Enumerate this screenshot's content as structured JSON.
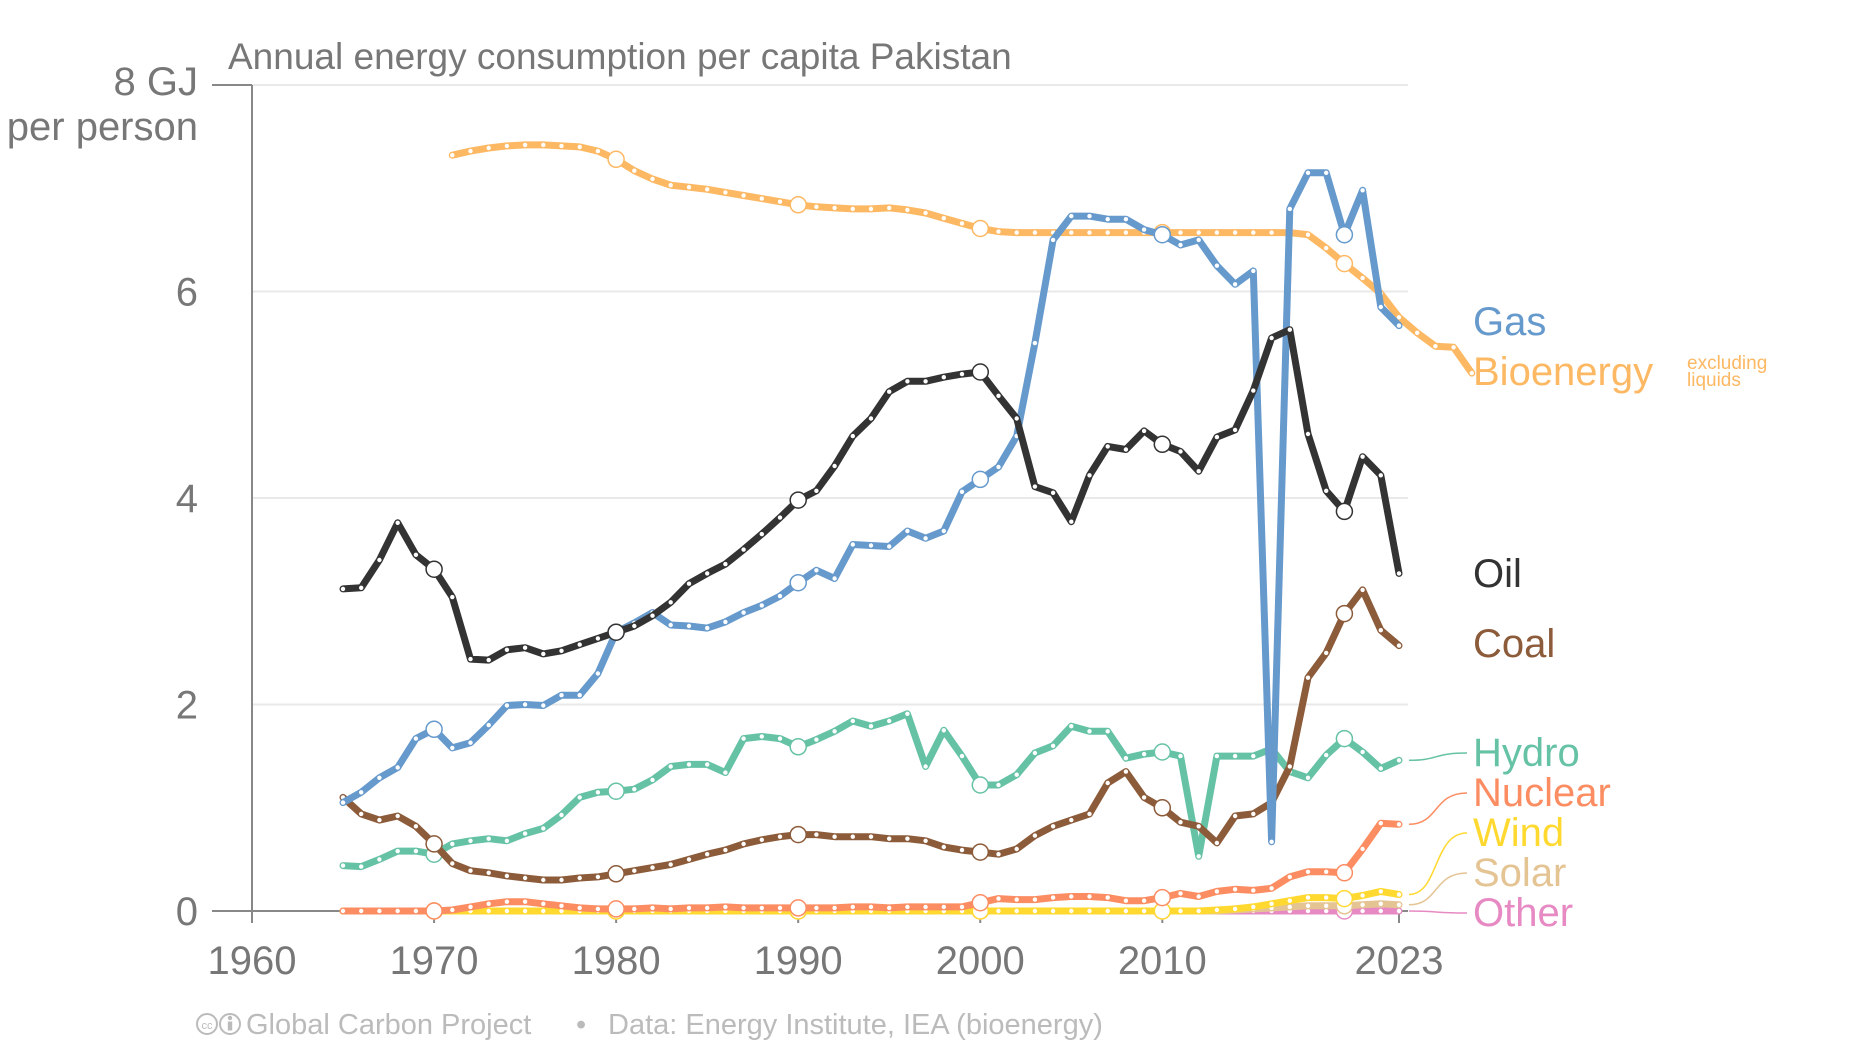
{
  "chart_data": {
    "type": "line",
    "title": "Annual energy consumption per capita Pakistan",
    "ylabel_lines": [
      "8 GJ",
      "per person"
    ],
    "ylim": [
      0,
      8
    ],
    "yticks": [
      "0",
      "2",
      "4",
      "6"
    ],
    "xlim": [
      1960,
      2023
    ],
    "xticks": [
      "1960",
      "1970",
      "1980",
      "1990",
      "2000",
      "2010",
      "2023"
    ],
    "footer": {
      "source": "Global Carbon Project",
      "separator": "•",
      "data": "Data: Energy Institute, IEA (bioenergy)"
    },
    "series": [
      {
        "name": "Bioenergy",
        "note": [
          "excluding",
          "liquids"
        ],
        "color": "#fdb863",
        "start": 1971,
        "values": [
          7.32,
          7.36,
          7.39,
          7.41,
          7.42,
          7.42,
          7.41,
          7.4,
          7.36,
          7.28,
          7.17,
          7.09,
          7.03,
          7.01,
          6.99,
          6.96,
          6.93,
          6.9,
          6.87,
          6.84,
          6.82,
          6.81,
          6.8,
          6.8,
          6.81,
          6.79,
          6.76,
          6.71,
          6.66,
          6.61,
          6.58,
          6.57,
          6.57,
          6.57,
          6.57,
          6.57,
          6.57,
          6.57,
          6.57,
          6.57,
          6.57,
          6.57,
          6.57,
          6.57,
          6.57,
          6.57,
          6.57,
          6.55,
          6.42,
          6.27,
          6.13,
          5.98,
          5.75,
          5.6,
          5.47,
          5.46,
          5.21
        ]
      },
      {
        "name": "Gas",
        "color": "#6699cc",
        "start": 1965,
        "values": [
          1.05,
          1.15,
          1.29,
          1.39,
          1.67,
          1.76,
          1.58,
          1.63,
          1.8,
          1.99,
          2.0,
          1.99,
          2.09,
          2.09,
          2.3,
          2.7,
          2.79,
          2.89,
          2.77,
          2.76,
          2.74,
          2.8,
          2.89,
          2.96,
          3.05,
          3.18,
          3.3,
          3.22,
          3.55,
          3.54,
          3.53,
          3.68,
          3.61,
          3.68,
          4.06,
          4.18,
          4.3,
          4.6,
          5.5,
          6.5,
          6.73,
          6.73,
          6.7,
          6.7,
          6.6,
          6.55,
          6.45,
          6.5,
          6.25,
          6.07,
          6.2,
          0.67,
          6.8,
          7.15,
          7.15,
          6.55,
          6.98,
          5.85,
          5.67
        ]
      },
      {
        "name": "Oil",
        "color": "#333333",
        "start": 1965,
        "values": [
          3.12,
          3.13,
          3.4,
          3.76,
          3.45,
          3.31,
          3.04,
          2.44,
          2.43,
          2.53,
          2.55,
          2.49,
          2.52,
          2.58,
          2.64,
          2.7,
          2.76,
          2.86,
          2.99,
          3.17,
          3.27,
          3.36,
          3.5,
          3.65,
          3.81,
          3.98,
          4.07,
          4.31,
          4.6,
          4.77,
          5.03,
          5.13,
          5.13,
          5.17,
          5.2,
          5.22,
          4.99,
          4.77,
          4.11,
          4.05,
          3.77,
          4.22,
          4.5,
          4.47,
          4.65,
          4.52,
          4.45,
          4.26,
          4.59,
          4.66,
          5.04,
          5.55,
          5.63,
          4.62,
          4.07,
          3.87,
          4.4,
          4.22,
          3.27
        ]
      },
      {
        "name": "Coal",
        "color": "#8c5b3a",
        "start": 1965,
        "values": [
          1.1,
          0.94,
          0.88,
          0.92,
          0.82,
          0.65,
          0.46,
          0.39,
          0.37,
          0.34,
          0.32,
          0.3,
          0.3,
          0.32,
          0.33,
          0.36,
          0.39,
          0.42,
          0.45,
          0.5,
          0.55,
          0.59,
          0.65,
          0.69,
          0.72,
          0.74,
          0.74,
          0.72,
          0.72,
          0.72,
          0.7,
          0.7,
          0.68,
          0.62,
          0.59,
          0.57,
          0.55,
          0.6,
          0.73,
          0.82,
          0.88,
          0.94,
          1.24,
          1.35,
          1.1,
          1.0,
          0.86,
          0.82,
          0.66,
          0.92,
          0.94,
          1.05,
          1.4,
          2.26,
          2.5,
          2.88,
          3.11,
          2.72,
          2.57
        ]
      },
      {
        "name": "Hydro",
        "color": "#66c2a5",
        "start": 1965,
        "values": [
          0.44,
          0.43,
          0.5,
          0.58,
          0.58,
          0.55,
          0.65,
          0.68,
          0.7,
          0.68,
          0.75,
          0.8,
          0.93,
          1.1,
          1.15,
          1.16,
          1.18,
          1.27,
          1.4,
          1.42,
          1.42,
          1.34,
          1.67,
          1.69,
          1.67,
          1.59,
          1.66,
          1.74,
          1.84,
          1.79,
          1.84,
          1.91,
          1.4,
          1.75,
          1.5,
          1.22,
          1.22,
          1.32,
          1.53,
          1.6,
          1.79,
          1.74,
          1.74,
          1.48,
          1.52,
          1.54,
          1.5,
          0.53,
          1.5,
          1.5,
          1.5,
          1.57,
          1.35,
          1.29,
          1.51,
          1.67,
          1.54,
          1.38,
          1.46
        ]
      },
      {
        "name": "Nuclear",
        "color": "#fc8d62",
        "start": 1965,
        "values": [
          0,
          0,
          0,
          0,
          0,
          0,
          0.01,
          0.04,
          0.07,
          0.09,
          0.09,
          0.07,
          0.05,
          0.03,
          0.02,
          0.02,
          0.02,
          0.03,
          0.02,
          0.03,
          0.03,
          0.04,
          0.03,
          0.03,
          0.03,
          0.03,
          0.03,
          0.03,
          0.04,
          0.04,
          0.03,
          0.04,
          0.04,
          0.04,
          0.04,
          0.08,
          0.12,
          0.11,
          0.11,
          0.13,
          0.14,
          0.14,
          0.13,
          0.1,
          0.1,
          0.13,
          0.17,
          0.14,
          0.19,
          0.21,
          0.2,
          0.22,
          0.33,
          0.38,
          0.38,
          0.37,
          0.6,
          0.85,
          0.84
        ]
      },
      {
        "name": "Wind",
        "color": "#ffd92f",
        "start": 1965,
        "values": [
          0,
          0,
          0,
          0,
          0,
          0,
          0,
          0,
          0,
          0,
          0,
          0,
          0,
          0,
          0,
          0,
          0,
          0,
          0,
          0,
          0,
          0,
          0,
          0,
          0,
          0,
          0,
          0,
          0,
          0,
          0,
          0,
          0,
          0,
          0,
          0,
          0,
          0,
          0,
          0,
          0,
          0,
          0,
          0,
          0,
          0,
          0,
          0,
          0.01,
          0.02,
          0.04,
          0.07,
          0.1,
          0.13,
          0.13,
          0.12,
          0.15,
          0.19,
          0.16
        ]
      },
      {
        "name": "Solar",
        "color": "#e5c494",
        "start": 1965,
        "values": [
          0,
          0,
          0,
          0,
          0,
          0,
          0,
          0,
          0,
          0,
          0,
          0,
          0,
          0,
          0,
          0,
          0,
          0,
          0,
          0,
          0,
          0,
          0,
          0,
          0,
          0,
          0,
          0,
          0,
          0,
          0,
          0,
          0,
          0,
          0,
          0,
          0,
          0,
          0,
          0,
          0,
          0,
          0,
          0,
          0,
          0,
          0,
          0,
          0,
          0.01,
          0.02,
          0.03,
          0.04,
          0.05,
          0.05,
          0.05,
          0.06,
          0.07,
          0.06
        ]
      },
      {
        "name": "Other",
        "color": "#e78ac3",
        "start": 1965,
        "values": [
          0,
          0,
          0,
          0,
          0,
          0,
          0,
          0,
          0,
          0,
          0,
          0,
          0,
          0,
          0,
          0,
          0,
          0,
          0,
          0,
          0,
          0,
          0,
          0,
          0,
          0,
          0,
          0,
          0,
          0,
          0,
          0,
          0,
          0,
          0,
          0,
          0,
          0,
          0,
          0,
          0,
          0,
          0,
          0,
          0,
          0,
          0,
          0,
          0,
          0,
          0,
          0,
          0,
          0,
          0,
          0,
          0,
          0,
          0
        ]
      }
    ]
  }
}
